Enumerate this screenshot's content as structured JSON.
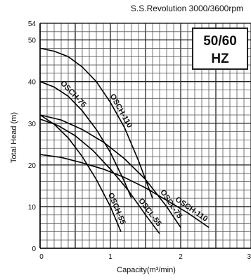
{
  "subtitle": "S.S.Revolution 3000/3600rpm",
  "badge": {
    "line1": "50/60",
    "line2": "HZ"
  },
  "chart_data": {
    "type": "line",
    "title": "",
    "subtitle": "S.S.Revolution 3000/3600rpm",
    "xlabel": "Capacity(m³/min)",
    "ylabel": "Total Head (m)",
    "xlim": [
      0,
      3
    ],
    "ylim": [
      0,
      54
    ],
    "x_ticks": [
      "0",
      "1",
      "2",
      "3"
    ],
    "y_ticks": [
      "0",
      "10",
      "20",
      "30",
      "40",
      "50",
      "54"
    ],
    "grid": true,
    "series": [
      {
        "name": "OSCH-110",
        "x": [
          0,
          0.2,
          0.4,
          0.6,
          0.8,
          1.0,
          1.2,
          1.4,
          1.6
        ],
        "y": [
          48,
          47.3,
          46,
          43.5,
          40,
          35,
          29,
          21,
          12
        ]
      },
      {
        "name": "OSCH-75",
        "x": [
          0,
          0.2,
          0.4,
          0.6,
          0.8,
          1.0,
          1.2,
          1.3
        ],
        "y": [
          40,
          38.7,
          36.5,
          33,
          28.5,
          23,
          16,
          12
        ]
      },
      {
        "name": "OSCH-55",
        "x": [
          0,
          0.2,
          0.4,
          0.6,
          0.8,
          1.0,
          1.15
        ],
        "y": [
          32,
          29.8,
          26.5,
          22,
          16.5,
          10,
          4
        ]
      },
      {
        "name": "OSCL-55",
        "x": [
          0,
          0.25,
          0.5,
          0.75,
          1.0,
          1.25,
          1.5,
          1.7
        ],
        "y": [
          31,
          29.5,
          27,
          23.5,
          19,
          14,
          8,
          3.5
        ]
      },
      {
        "name": "OSCL-75",
        "x": [
          0,
          0.3,
          0.6,
          0.9,
          1.2,
          1.5,
          1.8,
          2.0
        ],
        "y": [
          32,
          30.8,
          28.5,
          25.5,
          21.5,
          16.5,
          10,
          5
        ]
      },
      {
        "name": "OSCH-110",
        "x": [
          0,
          0.3,
          0.6,
          0.9,
          1.2,
          1.5,
          1.8,
          2.1,
          2.4
        ],
        "y": [
          22.5,
          21.8,
          20.5,
          19,
          17,
          14.5,
          11.5,
          8.5,
          5
        ]
      }
    ],
    "curve_labels": [
      "OSCH-110",
      "OSCH-75",
      "OSCH-55",
      "OSCL-55",
      "OSCL-75",
      "OSCH-110"
    ]
  }
}
